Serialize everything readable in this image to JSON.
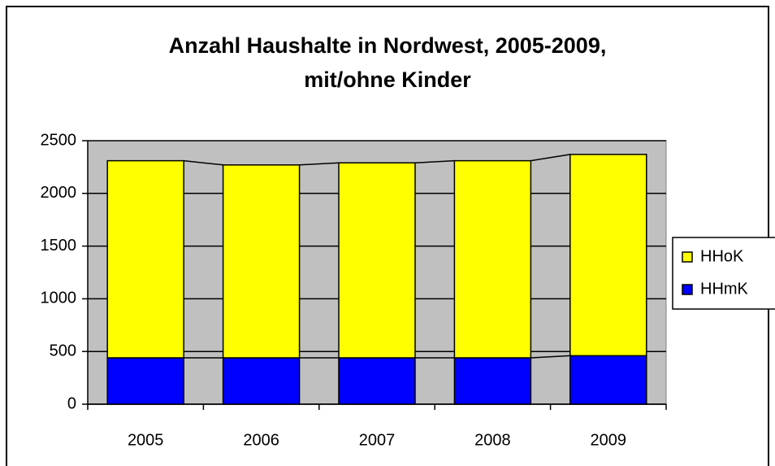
{
  "chart_data": {
    "type": "stacked_bar",
    "title": [
      "Anzahl Haushalte in Nordwest, 2005-2009,",
      "mit/ohne Kinder"
    ],
    "categories": [
      "2005",
      "2006",
      "2007",
      "2008",
      "2009"
    ],
    "series": [
      {
        "name": "HHmK",
        "color": "#0000ff",
        "values": [
          440,
          440,
          440,
          440,
          460
        ]
      },
      {
        "name": "HHoK",
        "color": "#ffff00",
        "values": [
          1870,
          1830,
          1850,
          1870,
          1910
        ]
      }
    ],
    "ylim": [
      0,
      2500
    ],
    "yticks": [
      0,
      500,
      1000,
      1500,
      2000,
      2500
    ],
    "grid": true,
    "legend": "right",
    "plot_background": "#c0c0c0"
  }
}
